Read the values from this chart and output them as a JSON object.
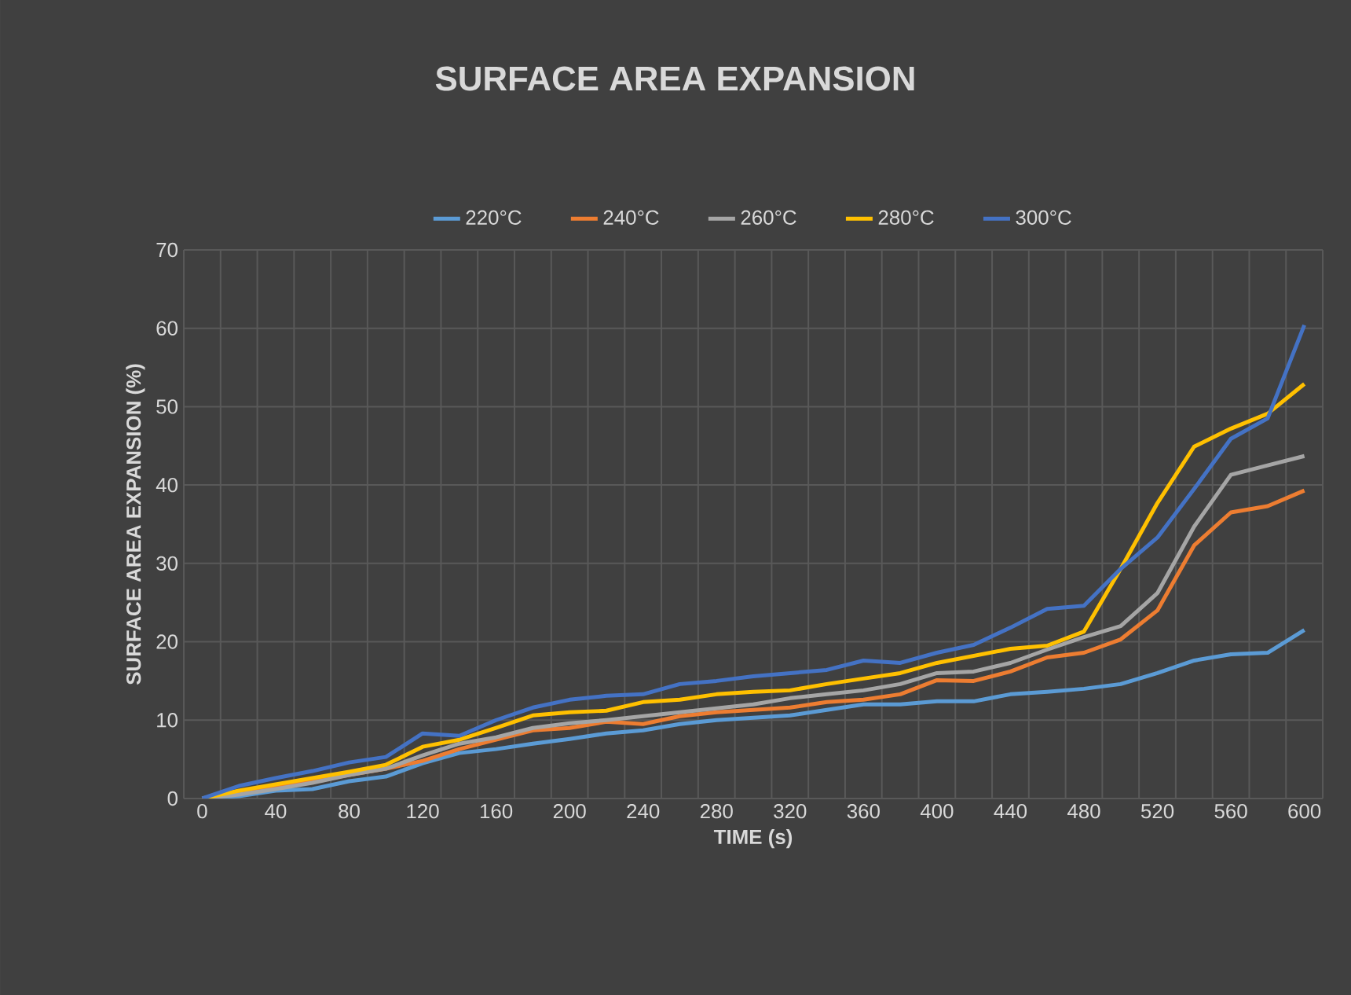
{
  "chart_data": {
    "type": "line",
    "title": "SURFACE AREA EXPANSION",
    "xlabel": "TIME (s)",
    "ylabel": "SURFACE AREA EXPANSION (%)",
    "categories": [
      "0",
      null,
      "40",
      null,
      "80",
      null,
      "120",
      null,
      "160",
      null,
      "200",
      null,
      "240",
      null,
      "280",
      null,
      "320",
      null,
      "360",
      null,
      "400",
      null,
      "440",
      null,
      "480",
      null,
      "520",
      null,
      "560",
      null,
      "600"
    ],
    "ylim": [
      0,
      70
    ],
    "yticks": [
      0,
      10,
      20,
      30,
      40,
      50,
      60,
      70
    ],
    "grid": true,
    "legend": "top",
    "series": [
      {
        "name": "220°C",
        "color": "#5b9bd5",
        "values": [
          0,
          0.3,
          1.0,
          1.2,
          2.2,
          2.8,
          4.5,
          5.8,
          6.3,
          7.0,
          7.6,
          8.3,
          8.7,
          9.5,
          10,
          10.3,
          10.6,
          11.3,
          12.0,
          12.0,
          12.4,
          12.4,
          13.3,
          13.6,
          14.0,
          14.6,
          16.0,
          17.6,
          18.4,
          18.6,
          21.5
        ]
      },
      {
        "name": "240°C",
        "color": "#ed7d31",
        "values": [
          0,
          0.8,
          1.6,
          2.2,
          3.0,
          3.8,
          4.8,
          6.3,
          7.5,
          8.7,
          9.0,
          9.8,
          9.5,
          10.5,
          11.0,
          11.3,
          11.6,
          12.3,
          12.6,
          13.3,
          15.1,
          15.0,
          16.2,
          18.0,
          18.6,
          20.3,
          24.0,
          32.3,
          36.5,
          37.3,
          39.3
        ]
      },
      {
        "name": "260°C",
        "color": "#a5a5a5",
        "values": [
          0,
          0.5,
          1.2,
          2.0,
          3.0,
          3.8,
          5.5,
          7.0,
          7.8,
          9.0,
          9.6,
          10.0,
          10.5,
          11.0,
          11.5,
          12.0,
          12.8,
          13.3,
          13.8,
          14.6,
          16.0,
          16.2,
          17.3,
          19.0,
          20.6,
          22.0,
          26.2,
          34.7,
          41.3,
          42.5,
          43.7
        ]
      },
      {
        "name": "280°C",
        "color": "#ffc000",
        "values": [
          0,
          1.0,
          1.8,
          2.6,
          3.4,
          4.3,
          6.6,
          7.5,
          9.0,
          10.6,
          11.0,
          11.2,
          12.3,
          12.6,
          13.3,
          13.6,
          13.8,
          14.6,
          15.3,
          16.0,
          17.3,
          18.2,
          19.1,
          19.5,
          21.3,
          29.3,
          37.7,
          44.9,
          47.2,
          49.1,
          52.9
        ]
      },
      {
        "name": "300°C",
        "color": "#4472c4",
        "values": [
          0,
          1.6,
          2.6,
          3.5,
          4.6,
          5.3,
          8.3,
          8.0,
          10.0,
          11.6,
          12.6,
          13.1,
          13.3,
          14.6,
          15.0,
          15.6,
          16.0,
          16.4,
          17.6,
          17.3,
          18.6,
          19.6,
          21.8,
          24.2,
          24.6,
          29.3,
          33.3,
          39.5,
          45.9,
          48.5,
          60.4
        ]
      }
    ]
  }
}
